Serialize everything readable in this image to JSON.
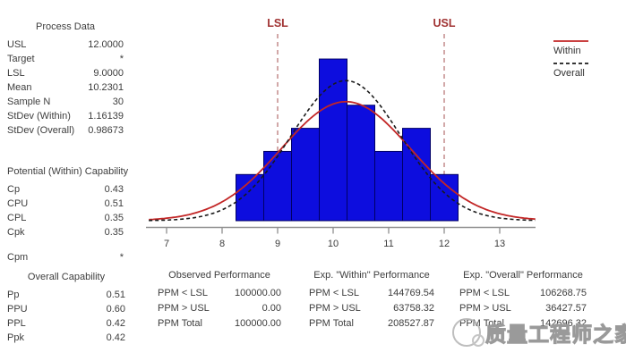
{
  "process_data": {
    "title": "Process Data",
    "rows": [
      {
        "label": "USL",
        "value": "12.0000"
      },
      {
        "label": "Target",
        "value": "*"
      },
      {
        "label": "LSL",
        "value": "9.0000"
      },
      {
        "label": "Mean",
        "value": "10.2301"
      },
      {
        "label": "Sample N",
        "value": "30"
      },
      {
        "label": "StDev (Within)",
        "value": "1.16139"
      },
      {
        "label": "StDev (Overall)",
        "value": "0.98673"
      }
    ]
  },
  "within_capability": {
    "title": "Potential (Within) Capability",
    "rows": [
      {
        "label": "Cp",
        "value": "0.43"
      },
      {
        "label": "CPU",
        "value": "0.51"
      },
      {
        "label": "CPL",
        "value": "0.35"
      },
      {
        "label": "Cpk",
        "value": "0.35"
      },
      {
        "label": "Cpm",
        "value": "*"
      }
    ]
  },
  "overall_capability": {
    "title": "Overall Capability",
    "rows": [
      {
        "label": "Pp",
        "value": "0.51"
      },
      {
        "label": "PPU",
        "value": "0.60"
      },
      {
        "label": "PPL",
        "value": "0.42"
      },
      {
        "label": "Ppk",
        "value": "0.42"
      }
    ]
  },
  "performance": [
    {
      "title": "Observed Performance",
      "rows": [
        {
          "label": "PPM < LSL",
          "value": "100000.00"
        },
        {
          "label": "PPM > USL",
          "value": "0.00"
        },
        {
          "label": "PPM Total",
          "value": "100000.00"
        }
      ]
    },
    {
      "title": "Exp. \"Within\" Performance",
      "rows": [
        {
          "label": "PPM < LSL",
          "value": "144769.54"
        },
        {
          "label": "PPM > USL",
          "value": "63758.32"
        },
        {
          "label": "PPM Total",
          "value": "208527.87"
        }
      ]
    },
    {
      "title": "Exp. \"Overall\" Performance",
      "rows": [
        {
          "label": "PPM < LSL",
          "value": "106268.75"
        },
        {
          "label": "PPM > USL",
          "value": "36427.57"
        },
        {
          "label": "PPM Total",
          "value": "142696.32"
        }
      ]
    }
  ],
  "watermark": {
    "text": "质量工程师之家"
  },
  "chart_data": {
    "type": "bar",
    "subtype": "process-capability-histogram",
    "title": "",
    "xlabel": "",
    "ylabel": "",
    "grid": false,
    "bin_centers": [
      8.5,
      9.0,
      9.5,
      10.0,
      10.5,
      11.0,
      11.5,
      12.0
    ],
    "bin_width": 0.5,
    "frequencies": [
      2,
      3,
      4,
      7,
      5,
      3,
      4,
      2
    ],
    "sample_n": 30,
    "x_ticks": [
      7,
      8,
      9,
      10,
      11,
      12,
      13
    ],
    "x_range": [
      6.5,
      13.8
    ],
    "lsl": {
      "label": "LSL",
      "value": 9.0
    },
    "usl": {
      "label": "USL",
      "value": 12.0
    },
    "curves": [
      {
        "name": "Within",
        "mean": 10.2301,
        "stdev": 1.16139,
        "style": "solid",
        "color": "#c22626"
      },
      {
        "name": "Overall",
        "mean": 10.2301,
        "stdev": 0.98673,
        "style": "dashed",
        "color": "#1a1a1a"
      }
    ],
    "legend_position": "top-right",
    "colors": {
      "bar_fill": "#0d0dde",
      "bar_stroke": "#000066",
      "spec_line": "#b97a7a",
      "spec_label": "#a03232",
      "axis": "#8f8f8f",
      "tick_label": "#3d3d3d",
      "legend_text": "#333333"
    }
  }
}
